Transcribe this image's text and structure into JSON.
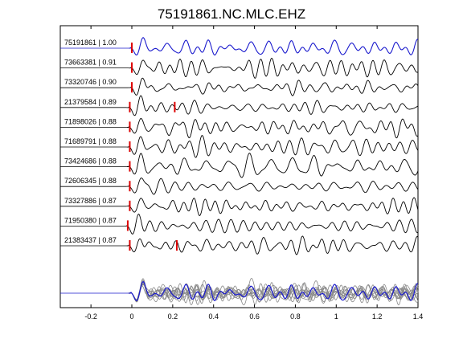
{
  "chart_data": {
    "type": "line",
    "title": "75191861.NC.MLC.EHZ",
    "xlabel": "",
    "ylabel": "",
    "xlim": [
      -0.35,
      1.4
    ],
    "x_ticks": [
      "-0.2",
      "0",
      "0.2",
      "0.4",
      "0.6",
      "0.8",
      "1",
      "1.2",
      "1.4"
    ],
    "x_tick_values": [
      -0.2,
      0,
      0.2,
      0.4,
      0.6,
      0.8,
      1.0,
      1.2,
      1.4
    ],
    "grid": false,
    "colors": {
      "reference": "#1a1acd",
      "trace": "#000000",
      "pick": "#dd0000",
      "stack": "#888888"
    },
    "series": [
      {
        "id": "75191861",
        "cc": "1.00",
        "label": "75191861 | 1.00",
        "pick_time": 0.0,
        "reference": true
      },
      {
        "id": "73663381",
        "cc": "0.91",
        "label": "73663381 | 0.91",
        "pick_time": 0.0
      },
      {
        "id": "73320746",
        "cc": "0.90",
        "label": "73320746 | 0.90",
        "pick_time": 0.0
      },
      {
        "id": "21379584",
        "cc": "0.89",
        "label": "21379584 | 0.89",
        "pick_time": -0.01,
        "second_pick_time": 0.21
      },
      {
        "id": "71898026",
        "cc": "0.88",
        "label": "71898026 | 0.88",
        "pick_time": -0.01
      },
      {
        "id": "71689791",
        "cc": "0.88",
        "label": "71689791 | 0.88",
        "pick_time": -0.01
      },
      {
        "id": "73424686",
        "cc": "0.88",
        "label": "73424686 | 0.88",
        "pick_time": -0.01
      },
      {
        "id": "72606345",
        "cc": "0.88",
        "label": "72606345 | 0.88",
        "pick_time": -0.01
      },
      {
        "id": "73327886",
        "cc": "0.87",
        "label": "73327886 | 0.87",
        "pick_time": -0.01
      },
      {
        "id": "71950380",
        "cc": "0.87",
        "label": "71950380 | 0.87",
        "pick_time": -0.02
      },
      {
        "id": "21383437",
        "cc": "0.87",
        "label": "21383437 | 0.87",
        "pick_time": -0.01,
        "second_pick_time": 0.22
      }
    ],
    "stack": {
      "label": ""
    }
  }
}
